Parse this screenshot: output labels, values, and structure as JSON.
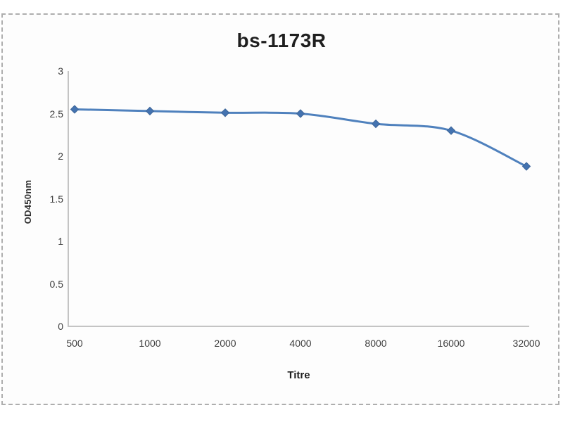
{
  "chart_data": {
    "type": "line",
    "title": "bs-1173R",
    "xlabel": "Titre",
    "ylabel": "OD450nm",
    "categories": [
      "500",
      "1000",
      "2000",
      "4000",
      "8000",
      "16000",
      "32000"
    ],
    "series": [
      {
        "name": "bs-1173R",
        "values": [
          2.55,
          2.53,
          2.51,
          2.5,
          2.38,
          2.3,
          1.88
        ]
      }
    ],
    "ylim": [
      0,
      3
    ],
    "ytick_step": 0.5,
    "yticks": [
      "0",
      "0.5",
      "1",
      "1.5",
      "2",
      "2.5",
      "3"
    ],
    "grid": false,
    "legend": "none",
    "smooth": true,
    "marker": "diamond",
    "colors": {
      "line": "#4f81bd",
      "marker_fill": "#4473b0",
      "marker_edge": "#3d6598",
      "axis": "#c4c4c4",
      "tick_label": "#3d3d3d",
      "title": "#1f1f1f",
      "chart_background": "#fdfdfd",
      "frame_border": "#aeaeae"
    }
  }
}
